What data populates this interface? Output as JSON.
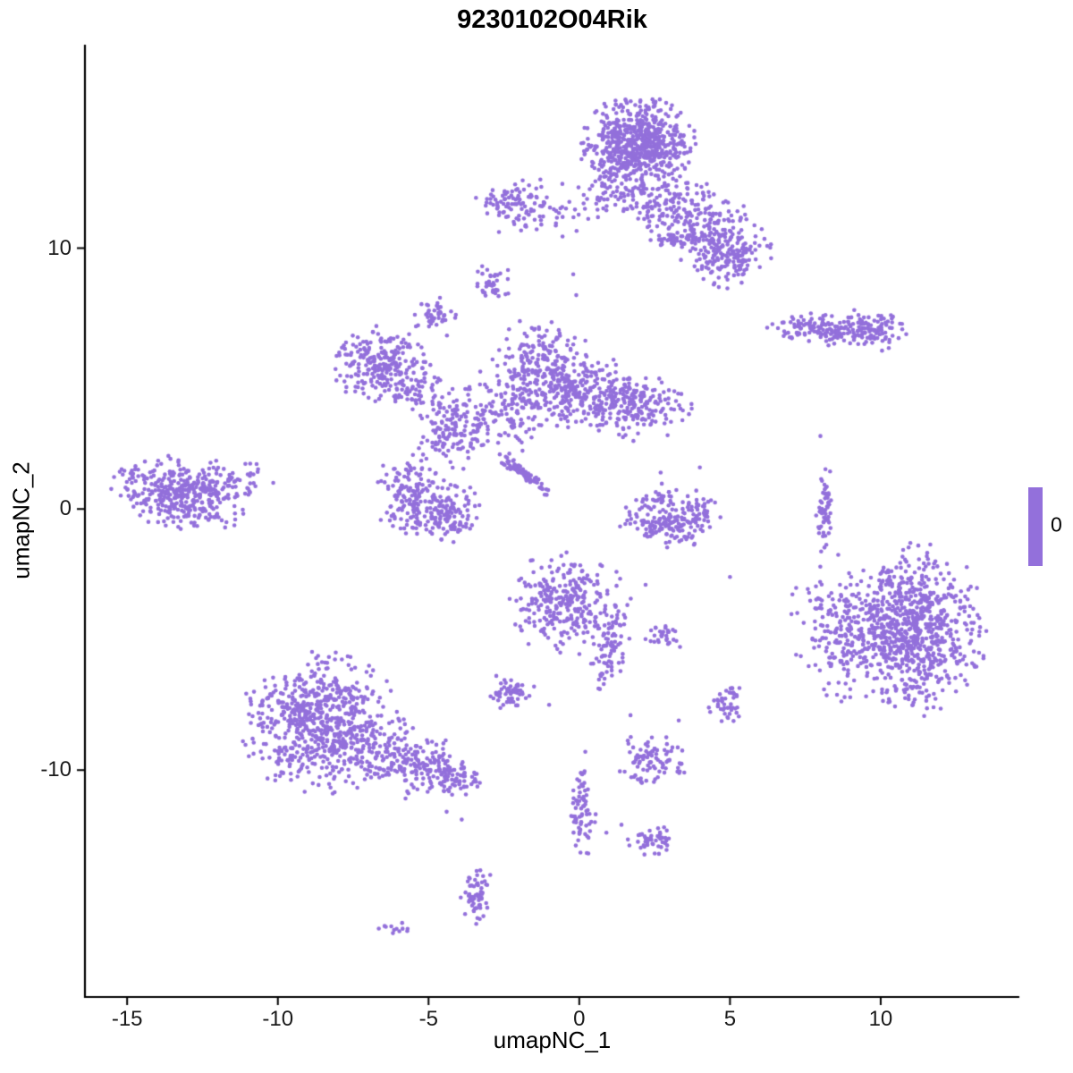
{
  "chart_data": {
    "type": "scatter",
    "title": "9230102O04Rik",
    "xlabel": "umapNC_1",
    "ylabel": "umapNC_2",
    "x_ticks": [
      -15,
      -10,
      -5,
      0,
      5,
      10
    ],
    "y_ticks": [
      10,
      0,
      -10
    ],
    "xlim": [
      -16.4,
      14.6
    ],
    "ylim": [
      -18.7,
      17.8
    ],
    "grid": false,
    "point_color": "#9370DB",
    "axis_color": "#000000",
    "legend": {
      "label": "0",
      "color": "#9370DB",
      "position": "right"
    },
    "clusters": [
      {
        "cx": 1.9,
        "cy": 14.0,
        "sx": 0.8,
        "sy": 0.75,
        "n": 650
      },
      {
        "cx": 1.6,
        "cy": 12.1,
        "sx": 0.95,
        "sy": 0.55,
        "n": 90
      },
      {
        "cx": 3.9,
        "cy": 11.0,
        "sx": 1.15,
        "sy": 0.7,
        "n": 260,
        "rot": -38
      },
      {
        "cx": 5.0,
        "cy": 9.7,
        "sx": 0.55,
        "sy": 0.65,
        "n": 130
      },
      {
        "cx": -2.2,
        "cy": 11.7,
        "sx": 0.55,
        "sy": 0.5,
        "n": 90
      },
      {
        "cx": -0.6,
        "cy": 11.3,
        "sx": 0.7,
        "sy": 0.35,
        "n": 30
      },
      {
        "cx": 3.2,
        "cy": 10.3,
        "sx": 0.4,
        "sy": 0.18,
        "n": 30
      },
      {
        "cx": -2.9,
        "cy": 8.7,
        "sx": 0.28,
        "sy": 0.3,
        "n": 40
      },
      {
        "cx": -4.75,
        "cy": 7.4,
        "sx": 0.3,
        "sy": 0.35,
        "n": 45
      },
      {
        "cx": -6.6,
        "cy": 5.6,
        "sx": 0.7,
        "sy": 0.6,
        "n": 230
      },
      {
        "cx": -5.3,
        "cy": 4.6,
        "sx": 0.5,
        "sy": 0.4,
        "n": 60
      },
      {
        "cx": -1.2,
        "cy": 5.3,
        "sx": 0.7,
        "sy": 0.85,
        "n": 260
      },
      {
        "cx": 0.4,
        "cy": 4.4,
        "sx": 0.9,
        "sy": 0.6,
        "n": 220
      },
      {
        "cx": 1.9,
        "cy": 3.9,
        "sx": 0.75,
        "sy": 0.55,
        "n": 160
      },
      {
        "cx": -2.6,
        "cy": 3.6,
        "sx": 1.0,
        "sy": 0.7,
        "n": 150
      },
      {
        "cx": -4.3,
        "cy": 2.9,
        "sx": 0.55,
        "sy": 0.65,
        "n": 110
      },
      {
        "cx": -1.9,
        "cy": 1.4,
        "sx": 0.55,
        "sy": 0.09,
        "n": 90,
        "rot": -42
      },
      {
        "cx": -5.6,
        "cy": 0.5,
        "sx": 0.55,
        "sy": 0.7,
        "n": 150
      },
      {
        "cx": -4.4,
        "cy": -0.2,
        "sx": 0.5,
        "sy": 0.55,
        "n": 130
      },
      {
        "cx": -13.2,
        "cy": 0.6,
        "sx": 0.95,
        "sy": 0.6,
        "n": 380,
        "rot": -12
      },
      {
        "cx": -11.3,
        "cy": 1.2,
        "sx": 0.5,
        "sy": 0.35,
        "n": 40
      },
      {
        "cx": 8.2,
        "cy": 6.9,
        "sx": 0.85,
        "sy": 0.27,
        "n": 140,
        "rot": -6
      },
      {
        "cx": 9.8,
        "cy": 6.9,
        "sx": 0.45,
        "sy": 0.38,
        "n": 90
      },
      {
        "cx": 8.15,
        "cy": 0.0,
        "sx": 0.14,
        "sy": 0.75,
        "n": 60
      },
      {
        "cx": 2.4,
        "cy": -0.3,
        "sx": 0.45,
        "sy": 0.4,
        "n": 60
      },
      {
        "cx": 3.1,
        "cy": -0.8,
        "sx": 0.5,
        "sy": 0.3,
        "n": 80
      },
      {
        "cx": 3.9,
        "cy": -0.2,
        "sx": 0.35,
        "sy": 0.4,
        "n": 50
      },
      {
        "cx": 2.9,
        "cy": 0.4,
        "sx": 0.5,
        "sy": 0.3,
        "n": 25
      },
      {
        "cx": 11.1,
        "cy": -4.6,
        "sx": 1.0,
        "sy": 1.35,
        "n": 800
      },
      {
        "cx": 8.8,
        "cy": -4.6,
        "sx": 0.8,
        "sy": 1.2,
        "n": 200
      },
      {
        "cx": -0.4,
        "cy": -3.6,
        "sx": 0.85,
        "sy": 0.8,
        "n": 280
      },
      {
        "cx": 1.0,
        "cy": -5.3,
        "sx": 0.28,
        "sy": 0.75,
        "n": 80
      },
      {
        "cx": 2.85,
        "cy": -4.9,
        "sx": 0.28,
        "sy": 0.22,
        "n": 30
      },
      {
        "cx": -2.3,
        "cy": -7.0,
        "sx": 0.4,
        "sy": 0.3,
        "n": 60
      },
      {
        "cx": -8.6,
        "cy": -8.2,
        "sx": 1.15,
        "sy": 1.1,
        "n": 680
      },
      {
        "cx": -5.8,
        "cy": -9.7,
        "sx": 1.05,
        "sy": 0.55,
        "n": 220,
        "rot": -18
      },
      {
        "cx": -4.3,
        "cy": -10.3,
        "sx": 0.45,
        "sy": 0.35,
        "n": 60
      },
      {
        "cx": 4.85,
        "cy": -7.5,
        "sx": 0.3,
        "sy": 0.35,
        "n": 45
      },
      {
        "cx": 2.4,
        "cy": -9.6,
        "sx": 0.5,
        "sy": 0.45,
        "n": 90
      },
      {
        "cx": 0.1,
        "cy": -11.5,
        "sx": 0.22,
        "sy": 0.7,
        "n": 70
      },
      {
        "cx": 2.4,
        "cy": -12.7,
        "sx": 0.32,
        "sy": 0.27,
        "n": 50
      },
      {
        "cx": -3.4,
        "cy": -14.7,
        "sx": 0.24,
        "sy": 0.5,
        "n": 60
      },
      {
        "cx": -6.0,
        "cy": -16.1,
        "sx": 0.28,
        "sy": 0.12,
        "n": 12
      }
    ],
    "singles": [
      [
        -0.2,
        9.0
      ],
      [
        -0.1,
        8.2
      ],
      [
        4.0,
        1.6
      ],
      [
        2.7,
        1.4
      ],
      [
        8.0,
        2.8
      ],
      [
        3.3,
        -8.1
      ],
      [
        1.7,
        -7.9
      ],
      [
        1.4,
        -12.1
      ],
      [
        0.9,
        -12.4
      ],
      [
        0.3,
        -13.2
      ],
      [
        -4.4,
        -11.6
      ],
      [
        -3.9,
        -11.9
      ],
      [
        2.2,
        -2.9
      ],
      [
        -1.0,
        -7.5
      ],
      [
        5.0,
        -2.6
      ],
      [
        0.2,
        -9.3
      ]
    ]
  }
}
